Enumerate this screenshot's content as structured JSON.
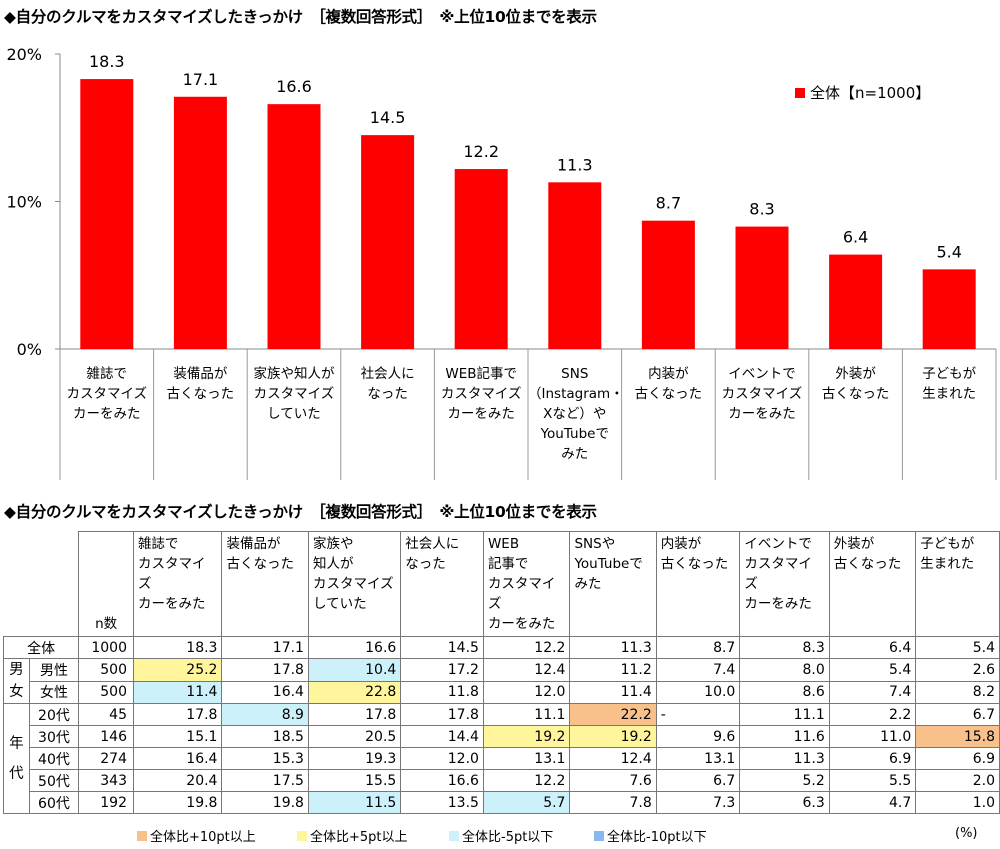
{
  "chart_title": "◆自分のクルマをカスタマイズしたきっかけ　［複数回答形式］　※上位10位までを表示",
  "table_title": "◆自分のクルマをカスタマイズしたきっかけ　［複数回答形式］　※上位10位までを表示",
  "chart_data": {
    "type": "bar",
    "categories": [
      "雑誌でカスタマイズカーをみた",
      "装備品が古くなった",
      "家族や知人がカスタマイズしていた",
      "社会人になった",
      "WEB記事でカスタマイズカーをみた",
      "SNS（Instagram・Xなど）やYouTubeでみた",
      "内装が古くなった",
      "イベントでカスタマイズカーをみた",
      "外装が古くなった",
      "子どもが生まれた"
    ],
    "category_label_lines": [
      [
        "雑誌で",
        "カスタマイズ",
        "カーをみた"
      ],
      [
        "装備品が",
        "古くなった"
      ],
      [
        "家族や知人が",
        "カスタマイズ",
        "していた"
      ],
      [
        "社会人に",
        "なった"
      ],
      [
        "WEB記事で",
        "カスタマイズ",
        "カーをみた"
      ],
      [
        "SNS",
        "（Instagram・",
        "Xなど）や",
        "YouTubeで",
        "みた"
      ],
      [
        "内装が",
        "古くなった"
      ],
      [
        "イベントで",
        "カスタマイズ",
        "カーをみた"
      ],
      [
        "外装が",
        "古くなった"
      ],
      [
        "子どもが",
        "生まれた"
      ]
    ],
    "series": [
      {
        "name": "全体【n=1000】",
        "values": [
          18.3,
          17.1,
          16.6,
          14.5,
          12.2,
          11.3,
          8.7,
          8.3,
          6.4,
          5.4
        ]
      }
    ],
    "value_labels": [
      "18.3",
      "17.1",
      "16.6",
      "14.5",
      "12.2",
      "11.3",
      "8.7",
      "8.3",
      "6.4",
      "5.4"
    ],
    "yticks": [
      "0%",
      "10%",
      "20%"
    ],
    "ylim": [
      0,
      20
    ],
    "bar_color": "#ff0000",
    "legend_position": "top-right"
  },
  "table": {
    "n_header": "n数",
    "col_headers": [
      [
        "雑誌で",
        "カスタマイズ",
        "カーをみた"
      ],
      [
        "装備品が",
        "古くなった"
      ],
      [
        "家族や",
        "知人が",
        "カスタマイズ",
        "していた"
      ],
      [
        "社会人に",
        "なった"
      ],
      [
        "WEB",
        "記事で",
        "カスタマイズ",
        "カーをみた"
      ],
      [
        "SNSや",
        "YouTubeで",
        "みた"
      ],
      [
        "内装が",
        "古くなった"
      ],
      [
        "イベントで",
        "カスタマイズ",
        "カーをみた"
      ],
      [
        "外装が",
        "古くなった"
      ],
      [
        "子どもが",
        "生まれた"
      ]
    ],
    "group_labels": {
      "gender": "男女",
      "age": "年代"
    },
    "rows": [
      {
        "label": "全体",
        "n": "1000",
        "values": [
          "18.3",
          "17.1",
          "16.6",
          "14.5",
          "12.2",
          "11.3",
          "8.7",
          "8.3",
          "6.4",
          "5.4"
        ],
        "hl": [
          "",
          "",
          "",
          "",
          "",
          "",
          "",
          "",
          "",
          ""
        ]
      },
      {
        "label": "男性",
        "n": "500",
        "values": [
          "25.2",
          "17.8",
          "10.4",
          "17.2",
          "12.4",
          "11.2",
          "7.4",
          "8.0",
          "5.4",
          "2.6"
        ],
        "hl": [
          "hi5",
          "",
          "lo5",
          "",
          "",
          "",
          "",
          "",
          "",
          ""
        ]
      },
      {
        "label": "女性",
        "n": "500",
        "values": [
          "11.4",
          "16.4",
          "22.8",
          "11.8",
          "12.0",
          "11.4",
          "10.0",
          "8.6",
          "7.4",
          "8.2"
        ],
        "hl": [
          "lo5",
          "",
          "hi5",
          "",
          "",
          "",
          "",
          "",
          "",
          ""
        ]
      },
      {
        "label": "20代",
        "n": "45",
        "values": [
          "17.8",
          "8.9",
          "17.8",
          "17.8",
          "11.1",
          "22.2",
          "-",
          "11.1",
          "2.2",
          "6.7"
        ],
        "hl": [
          "",
          "lo5",
          "",
          "",
          "",
          "hi10",
          "",
          "",
          "",
          ""
        ]
      },
      {
        "label": "30代",
        "n": "146",
        "values": [
          "15.1",
          "18.5",
          "20.5",
          "14.4",
          "19.2",
          "19.2",
          "9.6",
          "11.6",
          "11.0",
          "15.8"
        ],
        "hl": [
          "",
          "",
          "",
          "",
          "hi5",
          "hi5",
          "",
          "",
          "",
          "hi10"
        ]
      },
      {
        "label": "40代",
        "n": "274",
        "values": [
          "16.4",
          "15.3",
          "19.3",
          "12.0",
          "13.1",
          "12.4",
          "13.1",
          "11.3",
          "6.9",
          "6.9"
        ],
        "hl": [
          "",
          "",
          "",
          "",
          "",
          "",
          "",
          "",
          "",
          ""
        ]
      },
      {
        "label": "50代",
        "n": "343",
        "values": [
          "20.4",
          "17.5",
          "15.5",
          "16.6",
          "12.2",
          "7.6",
          "6.7",
          "5.2",
          "5.5",
          "2.0"
        ],
        "hl": [
          "",
          "",
          "",
          "",
          "",
          "",
          "",
          "",
          "",
          ""
        ]
      },
      {
        "label": "60代",
        "n": "192",
        "values": [
          "19.8",
          "19.8",
          "11.5",
          "13.5",
          "5.7",
          "7.8",
          "7.3",
          "6.3",
          "4.7",
          "1.0"
        ],
        "hl": [
          "",
          "",
          "lo5",
          "",
          "lo5",
          "",
          "",
          "",
          "",
          ""
        ]
      }
    ]
  },
  "notes": {
    "items": [
      {
        "label": "全体比+10pt以上",
        "color": "#f8c18c"
      },
      {
        "label": "全体比+5pt以上",
        "color": "#fff59c"
      },
      {
        "label": "全体比-5pt以下",
        "color": "#ccf1fb"
      },
      {
        "label": "全体比-10pt以下",
        "color": "#8ab8ee"
      }
    ],
    "unit": "(%)"
  }
}
